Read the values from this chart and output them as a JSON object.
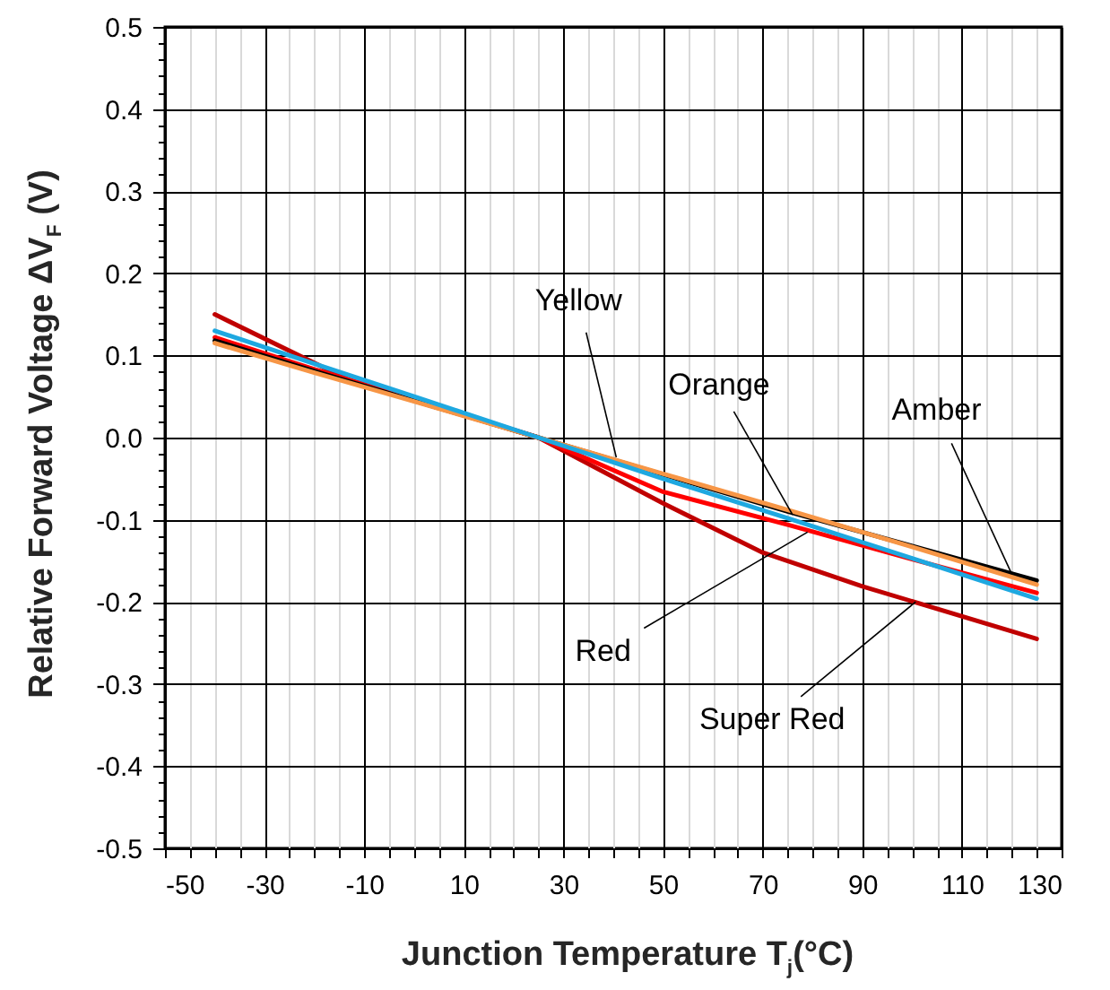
{
  "chart_data": {
    "type": "line",
    "xlabel": "Junction Temperature T$_{j}$(°C)",
    "ylabel": "Relative Forward Voltage ΔV$_{F}$ (V)",
    "xlim": [
      -50,
      130
    ],
    "xticks": [
      -50,
      {
        "value": -45,
        "label": null
      },
      {
        "value": -40,
        "label": null
      },
      {
        "value": -35,
        "label": null
      },
      -30,
      {
        "value": -25,
        "label": null
      },
      {
        "value": -20,
        "label": null
      },
      {
        "value": -15,
        "label": null
      },
      -10,
      {
        "value": -5,
        "label": null
      },
      {
        "value": 0,
        "label": null
      },
      {
        "value": 5,
        "label": null
      },
      10,
      {
        "value": 15,
        "label": null
      },
      {
        "value": 20,
        "label": null
      },
      {
        "value": 25,
        "label": null
      },
      30,
      {
        "value": 35,
        "label": null
      },
      {
        "value": 40,
        "label": null
      },
      {
        "value": 45,
        "label": null
      },
      50,
      {
        "value": 55,
        "label": null
      },
      {
        "value": 60,
        "label": null
      },
      {
        "value": 65,
        "label": null
      },
      70,
      {
        "value": 75,
        "label": null
      },
      {
        "value": 80,
        "label": null
      },
      {
        "value": 85,
        "label": null
      },
      90,
      {
        "value": 95,
        "label": null
      },
      {
        "value": 100,
        "label": null
      },
      {
        "value": 105,
        "label": null
      },
      110,
      {
        "value": 115,
        "label": null
      },
      {
        "value": 120,
        "label": null
      },
      {
        "value": 125,
        "label": null
      },
      130
    ],
    "ylim": [
      -0.5,
      0.5
    ],
    "yticks": [
      -0.5,
      {
        "value": -0.48,
        "label": null
      },
      {
        "value": -0.46,
        "label": null
      },
      {
        "value": -0.44,
        "label": null
      },
      {
        "value": -0.42,
        "label": null
      },
      -0.4,
      {
        "value": -0.38,
        "label": null
      },
      {
        "value": -0.36,
        "label": null
      },
      {
        "value": -0.34,
        "label": null
      },
      {
        "value": -0.32,
        "label": null
      },
      -0.3,
      {
        "value": -0.28,
        "label": null
      },
      {
        "value": -0.26,
        "label": null
      },
      {
        "value": -0.24,
        "label": null
      },
      {
        "value": -0.22,
        "label": null
      },
      -0.2,
      {
        "value": -0.18,
        "label": null
      },
      {
        "value": -0.16,
        "label": null
      },
      {
        "value": -0.14,
        "label": null
      },
      {
        "value": -0.12,
        "label": null
      },
      -0.1,
      {
        "value": -0.08,
        "label": null
      },
      {
        "value": -0.06,
        "label": null
      },
      {
        "value": -0.04,
        "label": null
      },
      {
        "value": -0.02,
        "label": null
      },
      {
        "value": 0,
        "label": "0.0"
      },
      {
        "value": 0.02,
        "label": null
      },
      {
        "value": 0.04,
        "label": null
      },
      {
        "value": 0.06,
        "label": null
      },
      {
        "value": 0.08,
        "label": null
      },
      0.1,
      {
        "value": 0.12,
        "label": null
      },
      {
        "value": 0.14,
        "label": null
      },
      {
        "value": 0.16,
        "label": null
      },
      {
        "value": 0.18,
        "label": null
      },
      0.2,
      {
        "value": 0.22,
        "label": null
      },
      {
        "value": 0.24,
        "label": null
      },
      {
        "value": 0.26,
        "label": null
      },
      {
        "value": 0.28,
        "label": null
      },
      0.3,
      {
        "value": 0.32,
        "label": null
      },
      {
        "value": 0.34,
        "label": null
      },
      {
        "value": 0.36,
        "label": null
      },
      {
        "value": 0.38,
        "label": null
      },
      0.4,
      {
        "value": 0.42,
        "label": null
      },
      {
        "value": 0.44,
        "label": null
      },
      {
        "value": 0.46,
        "label": null
      },
      {
        "value": 0.48,
        "label": null
      },
      0.5
    ],
    "grid": true,
    "marker": "none",
    "line_style": "solid",
    "series": [
      {
        "color": "#c00000",
        "x": [
          -40,
          -20,
          -13,
          0,
          25,
          35,
          50,
          70,
          90,
          125
        ],
        "values": [
          0.15,
          0.091,
          0.07,
          0.045,
          0,
          -0.032,
          -0.08,
          -0.14,
          -0.181,
          -0.245
        ]
      },
      {
        "color": "#ff0000",
        "x": [
          -40,
          -20,
          0,
          25,
          50,
          75,
          100,
          125
        ],
        "values": [
          0.122,
          0.083,
          0.047,
          0,
          -0.066,
          -0.106,
          -0.148,
          -0.189
        ]
      },
      {
        "color": "#000000",
        "x": [
          -40,
          -20,
          0,
          25,
          50,
          75,
          100,
          125
        ],
        "values": [
          0.118,
          0.081,
          0.045,
          0,
          -0.045,
          -0.09,
          -0.132,
          -0.174
        ]
      },
      {
        "color": "#f79646",
        "x": [
          -40,
          -20,
          0,
          25,
          50,
          75,
          100,
          125
        ],
        "values": [
          0.115,
          0.079,
          0.044,
          0,
          -0.044,
          -0.088,
          -0.133,
          -0.179
        ]
      },
      {
        "color": "#1ea8e0",
        "x": [
          -40,
          -20,
          0,
          25,
          50,
          75,
          100,
          125
        ],
        "values": [
          0.13,
          0.09,
          0.05,
          0,
          -0.05,
          -0.098,
          -0.147,
          -0.196
        ]
      }
    ],
    "annotations": [
      {
        "text": "Yellow",
        "x": 40.6,
        "y": -0.024
      },
      {
        "text": "Orange",
        "x": 76,
        "y": -0.094
      },
      {
        "text": "Amber",
        "x": 120,
        "y": -0.166
      },
      {
        "text": "Red",
        "x": 79,
        "y": -0.115
      },
      {
        "text": "Super Red",
        "x": 100.7,
        "y": -0.2
      }
    ]
  }
}
